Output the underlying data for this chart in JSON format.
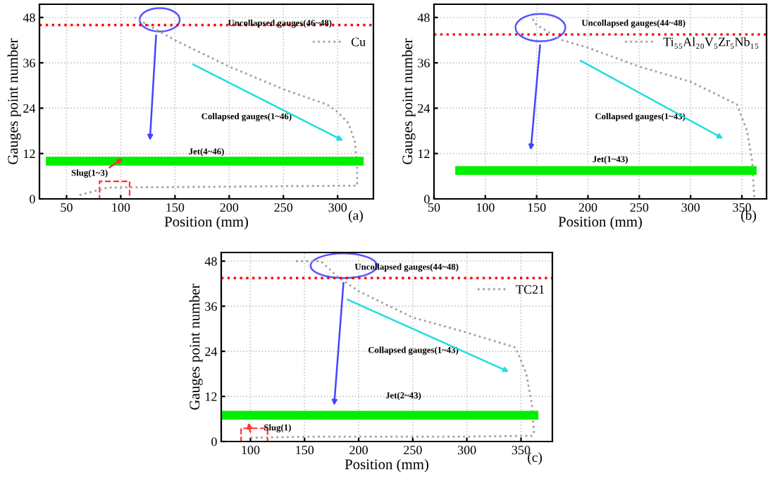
{
  "chart_data": [
    {
      "type": "line",
      "xlabel": "Position (mm)",
      "ylabel": "Gauges point number",
      "xlim": [
        25,
        333
      ],
      "xticks": [
        50,
        100,
        150,
        200,
        250,
        300
      ],
      "ylim": [
        0,
        51.5
      ],
      "yticks": [
        0,
        12,
        24,
        36,
        48
      ],
      "grid": true,
      "legend": "top right",
      "marker": "none",
      "series": [
        {
          "name": "Cu",
          "color": "#a0a0a0",
          "line_style": "dotted",
          "x": [
            62,
            75,
            88,
            318,
            318,
            316,
            310,
            300,
            290,
            250,
            200,
            150,
            125,
            113
          ],
          "values": [
            1,
            2,
            3,
            3.5,
            8,
            15,
            20,
            23,
            25,
            29,
            35,
            42,
            46,
            48
          ]
        },
        {
          "color": "#00ee00",
          "line_style": "solid",
          "x": [
            35,
            60,
            100,
            120,
            200,
            300,
            320
          ],
          "values": [
            10,
            10,
            10,
            10,
            10,
            10,
            10
          ]
        }
      ],
      "ref_lines": [
        {
          "axis": "y",
          "value": 46,
          "color": "#ff0000",
          "line_style": "dotted"
        }
      ],
      "annotations": [
        "Uncollapsed gauges(46~48)",
        "Collapsed gauges(1~46)",
        "Jet(4~46)",
        "Slug(1~3)",
        "(a)"
      ]
    },
    {
      "type": "line",
      "xlabel": "Position (mm)",
      "ylabel": "Gauges point number",
      "xlim": [
        50,
        374
      ],
      "xticks": [
        50,
        100,
        150,
        200,
        250,
        300,
        350
      ],
      "ylim": [
        0,
        51.5
      ],
      "yticks": [
        0,
        12,
        24,
        36,
        48
      ],
      "grid": true,
      "legend": "top right",
      "marker": "none",
      "series": [
        {
          "name": "Ti₅₅Al₂₀V₅Zr₅Nb₁₅",
          "color": "#a0a0a0",
          "line_style": "dotted",
          "x": [
            362,
            360,
            355,
            345,
            300,
            250,
            200,
            175,
            150,
            145
          ],
          "values": [
            0.5,
            10,
            18,
            25,
            31,
            35,
            40,
            42,
            46,
            48
          ]
        },
        {
          "color": "#00ee00",
          "line_style": "solid",
          "x": [
            75,
            110,
            150,
            200,
            300,
            360
          ],
          "values": [
            7.5,
            7.5,
            7.5,
            7.5,
            7.5,
            7.5
          ]
        }
      ],
      "ref_lines": [
        {
          "axis": "y",
          "value": 43.5,
          "color": "#ff0000",
          "line_style": "dotted"
        }
      ],
      "annotations": [
        "Uncollapsed gauges(44~48)",
        "Collapsed gauges(1~43)",
        "Jet(1~43)",
        "(b)"
      ]
    },
    {
      "type": "line",
      "xlabel": "Position (mm)",
      "ylabel": "Gauges point number",
      "xlim": [
        73,
        379
      ],
      "xticks": [
        100,
        150,
        200,
        250,
        300,
        350
      ],
      "ylim": [
        0,
        50.3
      ],
      "yticks": [
        0,
        12,
        24,
        36,
        48
      ],
      "grid": true,
      "legend": "top right",
      "marker": "none",
      "series": [
        {
          "name": "TC21",
          "color": "#a0a0a0",
          "line_style": "dotted",
          "x": [
            100,
            160,
            200,
            300,
            360,
            362,
            360,
            355,
            345,
            300,
            250,
            200,
            180,
            165,
            140
          ],
          "values": [
            1,
            1.3,
            1.3,
            1.3,
            1.5,
            2,
            10,
            18,
            25,
            29,
            33,
            40,
            44,
            48,
            48
          ]
        },
        {
          "color": "#00ee00",
          "line_style": "solid",
          "x": [
            75,
            110,
            150,
            200,
            300,
            362
          ],
          "values": [
            7,
            7,
            7,
            7,
            7,
            7
          ]
        }
      ],
      "ref_lines": [
        {
          "axis": "y",
          "value": 43.5,
          "color": "#ff0000",
          "line_style": "dotted"
        }
      ],
      "annotations": [
        "Uncollapsed gauges(44~48)",
        "Collapsed gauges(1~43)",
        "Jet(2~43)",
        "Slug(1)",
        "(c)"
      ]
    }
  ]
}
